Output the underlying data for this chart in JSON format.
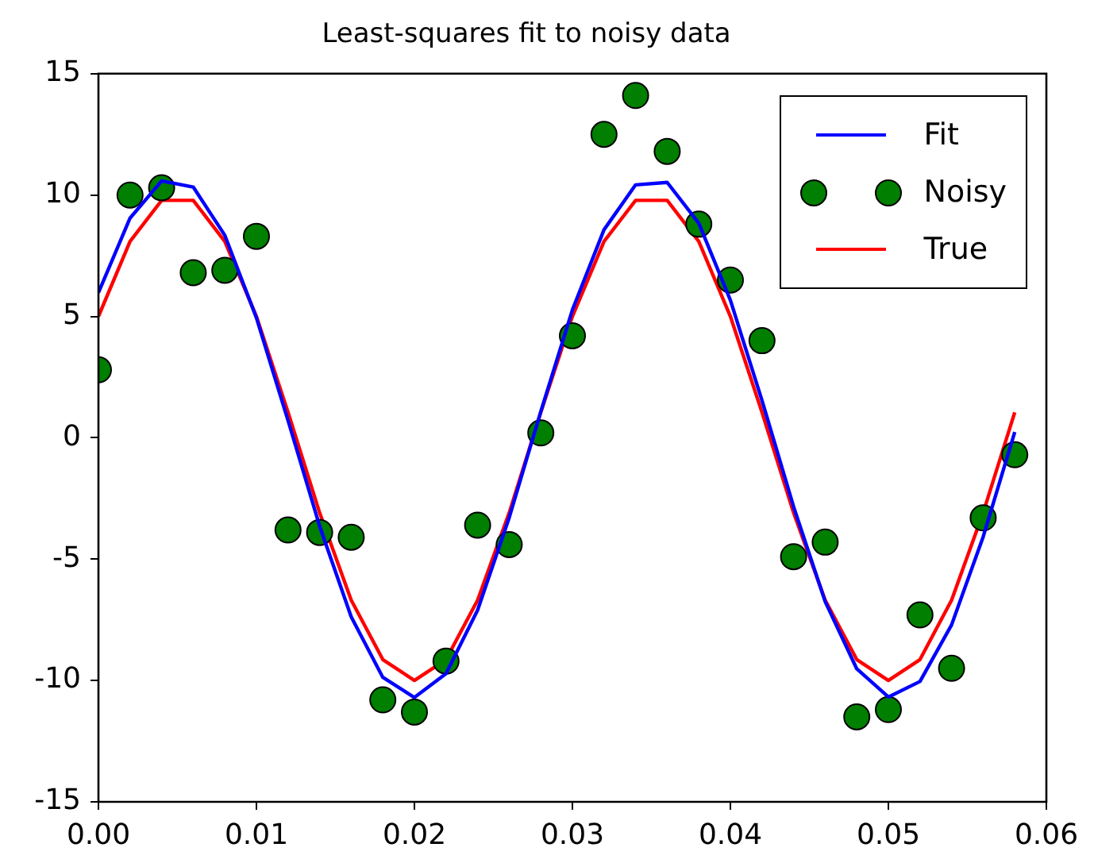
{
  "chart_data": {
    "type": "line",
    "title": "Least-squares fit to noisy data",
    "x": [
      0,
      0.002,
      0.004,
      0.006,
      0.008,
      0.01,
      0.012,
      0.014,
      0.016,
      0.018,
      0.02,
      0.022,
      0.024,
      0.026,
      0.028,
      0.03,
      0.032,
      0.034,
      0.036,
      0.038,
      0.04,
      0.042,
      0.044,
      0.046,
      0.048,
      0.05,
      0.052,
      0.054,
      0.056,
      0.058
    ],
    "series": [
      {
        "name": "Fit",
        "type": "line",
        "marker": "none",
        "color": "#0000ff",
        "values": [
          5.98,
          9.05,
          10.58,
          10.33,
          8.34,
          4.94,
          0.71,
          -3.64,
          -7.38,
          -9.87,
          -10.7,
          -9.72,
          -7.1,
          -3.29,
          1.08,
          5.27,
          8.57,
          10.42,
          10.52,
          8.84,
          5.67,
          1.54,
          -2.84,
          -6.75,
          -9.52,
          -10.68,
          -10.04,
          -7.71,
          -4.08,
          0.24
        ]
      },
      {
        "name": "Noisy",
        "type": "scatter",
        "marker": "circle",
        "color": "#007f00",
        "values": [
          2.8,
          10.0,
          10.3,
          6.8,
          6.9,
          8.3,
          -3.8,
          -3.9,
          -4.1,
          -10.8,
          -11.3,
          -9.2,
          -3.6,
          -4.4,
          0.2,
          4.2,
          12.5,
          14.1,
          11.8,
          8.8,
          6.5,
          4.0,
          -4.9,
          -4.3,
          -11.5,
          -11.2,
          -7.3,
          -9.5,
          -3.3,
          -0.7
        ]
      },
      {
        "name": "True",
        "type": "line",
        "marker": "none",
        "color": "#ff0000",
        "values": [
          5.0,
          8.09,
          9.78,
          9.78,
          8.09,
          5.0,
          1.05,
          -3.09,
          -6.69,
          -9.14,
          -10.0,
          -9.14,
          -6.69,
          -3.09,
          1.05,
          5.0,
          8.09,
          9.78,
          9.78,
          8.09,
          5.0,
          1.05,
          -3.09,
          -6.69,
          -9.14,
          -10.0,
          -9.14,
          -6.69,
          -3.09,
          1.05
        ]
      }
    ],
    "xlim": [
      0,
      0.06
    ],
    "xticks": [
      {
        "value": 0,
        "label": "0.00"
      },
      {
        "value": 0.01,
        "label": "0.01"
      },
      {
        "value": 0.02,
        "label": "0.02"
      },
      {
        "value": 0.03,
        "label": "0.03"
      },
      {
        "value": 0.04,
        "label": "0.04"
      },
      {
        "value": 0.05,
        "label": "0.05"
      },
      {
        "value": 0.06,
        "label": "0.06"
      }
    ],
    "ylim": [
      -15,
      15
    ],
    "yticks": [
      -15,
      -10,
      -5,
      0,
      5,
      10,
      15
    ],
    "grid": false,
    "legend": "top right"
  }
}
